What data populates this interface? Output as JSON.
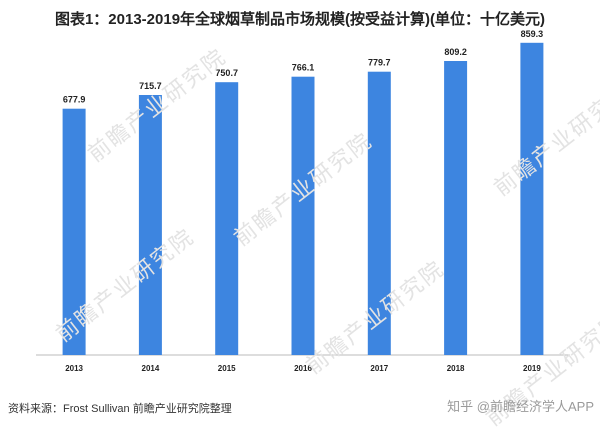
{
  "header": {
    "title": "图表1：2013-2019年全球烟草制品市场规模(按受益计算)(单位：十亿美元)"
  },
  "watermark": {
    "text": "前瞻产业研究院"
  },
  "footer": {
    "source": "资料来源：Frost Sullivan 前瞻产业研究院整理",
    "attribution": "知乎 @前瞻经济学人APP"
  },
  "colors": {
    "bar": "#3d85e0",
    "text": "#222222",
    "axis": "#bbbbbb"
  },
  "chart_data": {
    "type": "bar",
    "title": "图表1：2013-2019年全球烟草制品市场规模(按受益计算)(单位：十亿美元)",
    "categories": [
      "2013",
      "2014",
      "2015",
      "2016",
      "2017",
      "2018",
      "2019"
    ],
    "values": [
      677.9,
      715.7,
      750.7,
      766.1,
      779.7,
      809.2,
      859.3
    ],
    "value_labels": [
      "677.9",
      "715.7",
      "750.7",
      "766.1",
      "779.7",
      "809.2",
      "859.3"
    ],
    "xlabel": "",
    "ylabel": "",
    "ylim": [
      0,
      900
    ],
    "grid": false,
    "legend": "none"
  }
}
